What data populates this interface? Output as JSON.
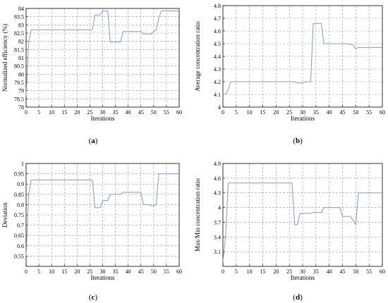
{
  "chart_data": [
    {
      "type": "line",
      "caption": "a",
      "xlabel": "Iterations",
      "ylabel": "Normalized efficiency (%)",
      "xlim": [
        0,
        60
      ],
      "ylim": [
        78,
        84
      ],
      "xticks": [
        0,
        5,
        10,
        15,
        20,
        25,
        30,
        35,
        40,
        45,
        50,
        55,
        60
      ],
      "yticks": [
        78,
        78.5,
        79,
        79.5,
        80,
        80.5,
        81,
        81.5,
        82,
        82.5,
        83,
        83.5,
        84
      ],
      "grid": true,
      "series": [
        {
          "color": "#8f8fdf",
          "x": [
            0,
            1,
            2,
            26,
            27,
            29,
            30,
            32,
            33,
            37,
            38,
            45,
            46,
            49,
            50,
            51,
            52,
            53,
            60
          ],
          "y": [
            78.7,
            81.9,
            82.7,
            82.7,
            83.6,
            83.6,
            83.85,
            83.85,
            81.95,
            81.95,
            82.6,
            82.6,
            82.45,
            82.45,
            82.6,
            82.7,
            83.4,
            83.85,
            83.85
          ]
        }
      ]
    },
    {
      "type": "line",
      "caption": "b",
      "xlabel": "Iterations",
      "ylabel": "Average concentration ratio",
      "xlim": [
        0,
        60
      ],
      "ylim": [
        4,
        4.8
      ],
      "xticks": [
        0,
        5,
        10,
        15,
        20,
        25,
        30,
        35,
        40,
        45,
        50,
        55,
        60
      ],
      "yticks": [
        4,
        4.1,
        4.2,
        4.3,
        4.4,
        4.5,
        4.6,
        4.7,
        4.8
      ],
      "grid": true,
      "series": [
        {
          "color": "#8f8fdf",
          "x": [
            0,
            1,
            2,
            3,
            4,
            27,
            28,
            30,
            31,
            33,
            34,
            37,
            38,
            45,
            46,
            49,
            50,
            51,
            60
          ],
          "y": [
            4.1,
            4.1,
            4.14,
            4.2,
            4.2,
            4.2,
            4.19,
            4.19,
            4.2,
            4.2,
            4.66,
            4.66,
            4.5,
            4.5,
            4.5,
            4.49,
            4.46,
            4.47,
            4.47
          ]
        }
      ]
    },
    {
      "type": "line",
      "caption": "c",
      "xlabel": "Iterations",
      "ylabel": "Deviation",
      "xlim": [
        0,
        60
      ],
      "ylim": [
        0.5,
        1
      ],
      "xticks": [
        0,
        5,
        10,
        15,
        20,
        25,
        30,
        35,
        40,
        45,
        50,
        55,
        60
      ],
      "yticks": [
        0.55,
        0.6,
        0.65,
        0.7,
        0.75,
        0.8,
        0.85,
        0.9,
        0.95,
        1
      ],
      "grid": true,
      "series": [
        {
          "color": "#8f8fdf",
          "x": [
            0,
            1,
            2,
            26,
            27,
            29,
            30,
            32,
            33,
            37,
            38,
            45,
            46,
            48,
            49,
            50,
            51,
            52,
            53,
            60
          ],
          "y": [
            0.55,
            0.85,
            0.92,
            0.92,
            0.785,
            0.785,
            0.82,
            0.82,
            0.85,
            0.85,
            0.86,
            0.86,
            0.8,
            0.8,
            0.795,
            0.795,
            0.8,
            0.95,
            0.95,
            0.95
          ]
        }
      ]
    },
    {
      "type": "line",
      "caption": "d",
      "xlabel": "Iterations",
      "ylabel": "Max/Min concentration ratio",
      "xlim": [
        0,
        60
      ],
      "ylim": [
        2.8,
        4.9
      ],
      "xticks": [
        0,
        5,
        10,
        15,
        20,
        25,
        30,
        35,
        40,
        45,
        50,
        55,
        60
      ],
      "yticks": [
        3.1,
        3.4,
        3.7,
        4,
        4.3,
        4.6,
        4.9
      ],
      "grid": true,
      "series": [
        {
          "color": "#8f8fdf",
          "x": [
            0,
            1,
            2,
            26,
            27,
            28,
            29,
            33,
            34,
            37,
            38,
            44,
            45,
            47,
            48,
            50,
            51,
            52,
            60
          ],
          "y": [
            2.9,
            3.4,
            4.5,
            4.5,
            3.65,
            3.65,
            3.88,
            3.88,
            3.9,
            3.9,
            4.0,
            4.0,
            3.82,
            3.82,
            3.82,
            3.65,
            4.3,
            4.3,
            4.3
          ]
        }
      ]
    }
  ]
}
